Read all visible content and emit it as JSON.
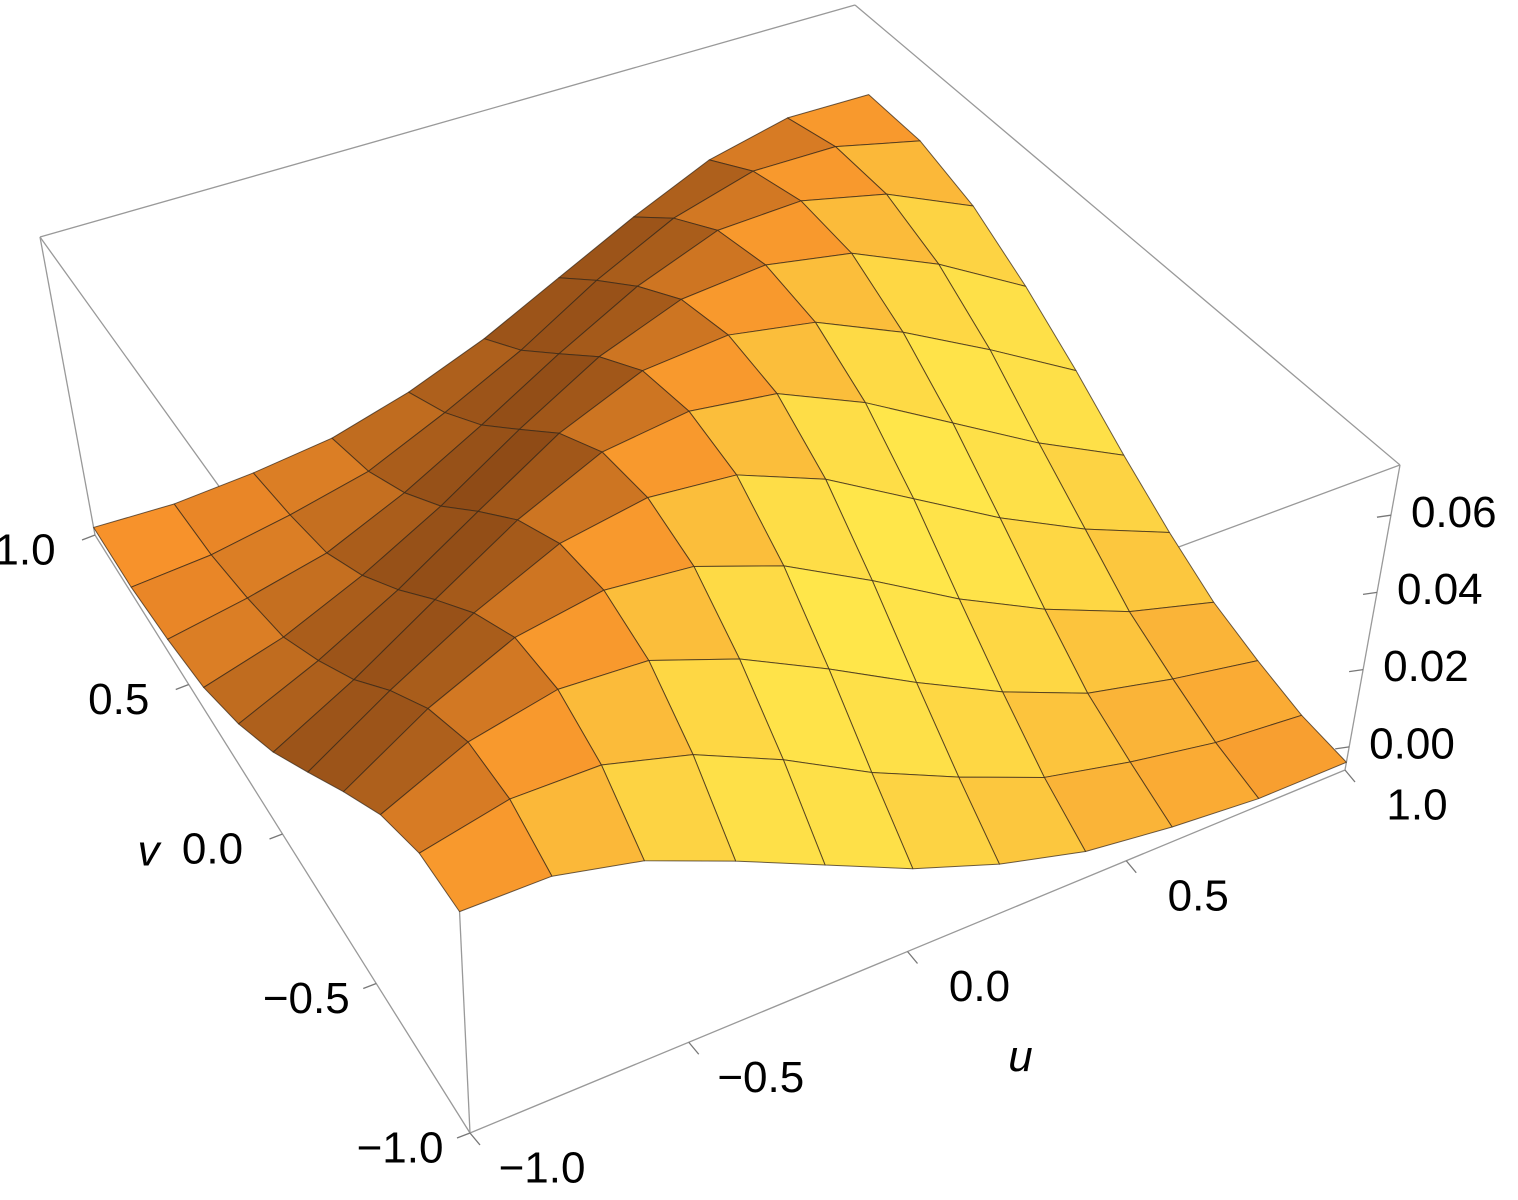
{
  "chart_data": {
    "type": "surface3d",
    "xlabel": "u",
    "ylabel": "v",
    "color": "#f7902a",
    "x": [
      -1,
      -0.8,
      -0.6,
      -0.4,
      -0.2,
      0,
      0.2,
      0.4,
      0.6,
      0.8,
      1
    ],
    "y": [
      -1,
      -0.8,
      -0.6,
      -0.4,
      -0.2,
      0,
      0.2,
      0.4,
      0.6,
      0.8,
      1
    ],
    "z": [
      [
        0.049,
        0.049,
        0.044,
        0.035,
        0.025,
        0.015,
        0.007,
        0.001,
        -0.002,
        -0.004,
        -0.004
      ],
      [
        0.049,
        0.054,
        0.054,
        0.048,
        0.038,
        0.026,
        0.016,
        0.007,
        0.002,
        -0.002,
        -0.004
      ],
      [
        0.044,
        0.054,
        0.059,
        0.058,
        0.05,
        0.039,
        0.027,
        0.016,
        0.007,
        0.002,
        -0.002
      ],
      [
        0.035,
        0.048,
        0.058,
        0.062,
        0.06,
        0.052,
        0.04,
        0.027,
        0.016,
        0.007,
        0.001
      ],
      [
        0.025,
        0.038,
        0.05,
        0.06,
        0.064,
        0.062,
        0.053,
        0.04,
        0.027,
        0.016,
        0.007
      ],
      [
        0.015,
        0.026,
        0.039,
        0.052,
        0.062,
        0.065,
        0.062,
        0.052,
        0.039,
        0.026,
        0.015
      ],
      [
        0.007,
        0.016,
        0.027,
        0.04,
        0.053,
        0.062,
        0.064,
        0.06,
        0.05,
        0.038,
        0.025
      ],
      [
        0.001,
        0.007,
        0.016,
        0.027,
        0.04,
        0.052,
        0.06,
        0.062,
        0.058,
        0.048,
        0.035
      ],
      [
        -0.002,
        0.002,
        0.007,
        0.016,
        0.027,
        0.039,
        0.05,
        0.058,
        0.059,
        0.054,
        0.044
      ],
      [
        -0.004,
        -0.002,
        0.002,
        0.007,
        0.016,
        0.026,
        0.038,
        0.048,
        0.054,
        0.054,
        0.049
      ],
      [
        -0.004,
        -0.004,
        -0.002,
        0.001,
        0.007,
        0.015,
        0.025,
        0.035,
        0.044,
        0.049,
        0.049
      ]
    ],
    "xlim": [
      -1,
      1
    ],
    "ylim": [
      -1,
      1
    ],
    "zlim": [
      -0.006,
      0.073
    ],
    "xticks": [
      {
        "value": -1,
        "label": "−1.0"
      },
      {
        "value": -0.5,
        "label": "−0.5"
      },
      {
        "value": 0,
        "label": "0.0"
      },
      {
        "value": 0.5,
        "label": "0.5"
      },
      {
        "value": 1,
        "label": "1.0"
      }
    ],
    "yticks": [
      {
        "value": -1,
        "label": "−1.0"
      },
      {
        "value": -0.5,
        "label": "−0.5"
      },
      {
        "value": 0,
        "label": "0.0"
      },
      {
        "value": 0.5,
        "label": "0.5"
      },
      {
        "value": 1,
        "label": "1.0"
      }
    ],
    "zticks": [
      {
        "value": 0,
        "label": "0.00"
      },
      {
        "value": 0.02,
        "label": "0.02"
      },
      {
        "value": 0.04,
        "label": "0.04"
      },
      {
        "value": 0.06,
        "label": "0.06"
      }
    ]
  }
}
